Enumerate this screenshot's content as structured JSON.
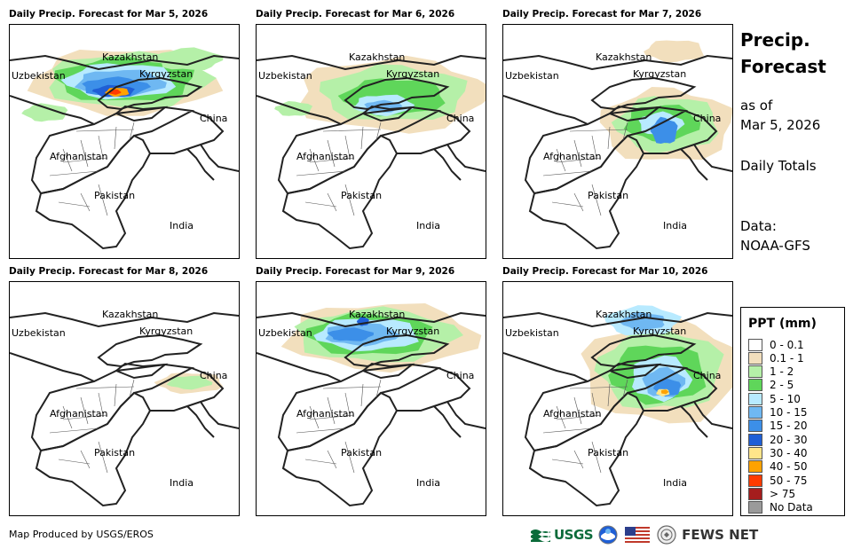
{
  "panels": [
    {
      "title": "Daily Precip. Forecast for Mar 5, 2026"
    },
    {
      "title": "Daily Precip. Forecast for Mar 6, 2026"
    },
    {
      "title": "Daily Precip. Forecast for Mar 7, 2026"
    },
    {
      "title": "Daily Precip. Forecast for Mar 8, 2026"
    },
    {
      "title": "Daily Precip. Forecast for Mar 9, 2026"
    },
    {
      "title": "Daily Precip. Forecast for Mar 10, 2026"
    }
  ],
  "map_labels": {
    "kazakhstan": "Kazakhstan",
    "uzbekistan": "Uzbekistan",
    "kyrgyzstan": "Kyrgyzstan",
    "china": "China",
    "afghanistan": "Afghanistan",
    "pakistan": "Pakistan",
    "india": "India"
  },
  "side": {
    "title_line1": "Precip.",
    "title_line2": "Forecast",
    "asof_line1": "as of",
    "asof_line2": "Mar 5, 2026",
    "totals": "Daily Totals",
    "data_line1": "Data:",
    "data_line2": "NOAA-GFS"
  },
  "legend": {
    "title": "PPT (mm)",
    "items": [
      {
        "label": "0 - 0.1",
        "color": "#ffffff"
      },
      {
        "label": "0.1 - 1",
        "color": "#f2dfbd"
      },
      {
        "label": "1 - 2",
        "color": "#b5f0a8"
      },
      {
        "label": "2 - 5",
        "color": "#5fd65a"
      },
      {
        "label": "5 - 10",
        "color": "#b8eaff"
      },
      {
        "label": "10 - 15",
        "color": "#6fb8f2"
      },
      {
        "label": "15 - 20",
        "color": "#3c8fe8"
      },
      {
        "label": "20 - 30",
        "color": "#1f5fd6"
      },
      {
        "label": "30 - 40",
        "color": "#ffe58a"
      },
      {
        "label": "40 - 50",
        "color": "#ffa200"
      },
      {
        "label": "50 - 75",
        "color": "#ff3b00"
      },
      {
        "label": "> 75",
        "color": "#a51d1d"
      },
      {
        "label": "No Data",
        "color": "#9a9a9a"
      }
    ]
  },
  "footer": {
    "credit": "Map Produced by USGS/EROS",
    "usgs_logo": "USGS",
    "fewsnet_logo": "FEWS NET"
  }
}
